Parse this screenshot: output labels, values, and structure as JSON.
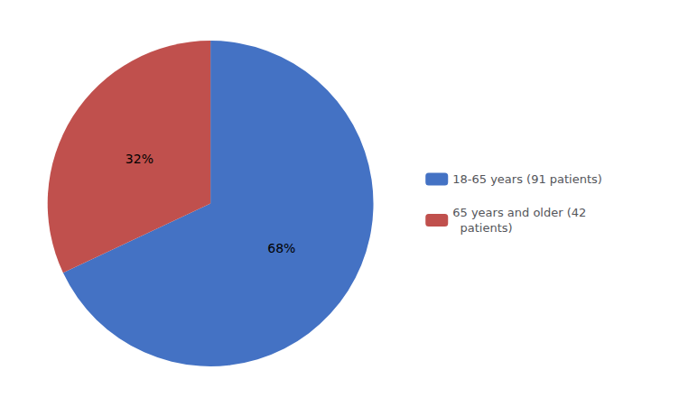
{
  "chart_data": {
    "type": "pie",
    "categories": [
      "18-65 years (91 patients)",
      "65 years and older (42\n  patients)"
    ],
    "values": [
      68,
      32
    ],
    "value_labels": [
      "68%",
      "32%"
    ],
    "data_labels": true,
    "colors": [
      "#4472C4",
      "#C0504D"
    ],
    "legend": "right"
  }
}
